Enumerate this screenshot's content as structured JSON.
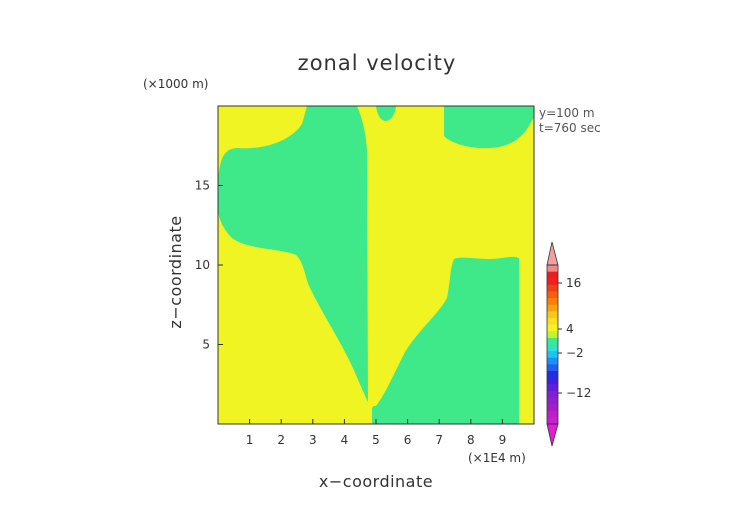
{
  "chart_data": {
    "type": "heatmap",
    "title": "zonal velocity",
    "xlabel": "x−coordinate",
    "ylabel": "z−coordinate",
    "x_unit": "(×1E4 m)",
    "y_unit": "(×1000 m)",
    "xlim": [
      0,
      10
    ],
    "ylim": [
      0,
      20
    ],
    "x_ticks": [
      1,
      2,
      3,
      4,
      5,
      6,
      7,
      8,
      9
    ],
    "y_ticks": [
      5,
      10,
      15
    ],
    "info_lines": [
      "y=100 m",
      "t=760 sec"
    ],
    "colorbar": {
      "tick_labels": [
        "16",
        "4",
        "−2",
        "−12"
      ],
      "tick_values": [
        16,
        4,
        -2,
        -12
      ]
    },
    "fill_colors": {
      "positive": "#f0f423",
      "negative": "#3fe98a"
    }
  }
}
